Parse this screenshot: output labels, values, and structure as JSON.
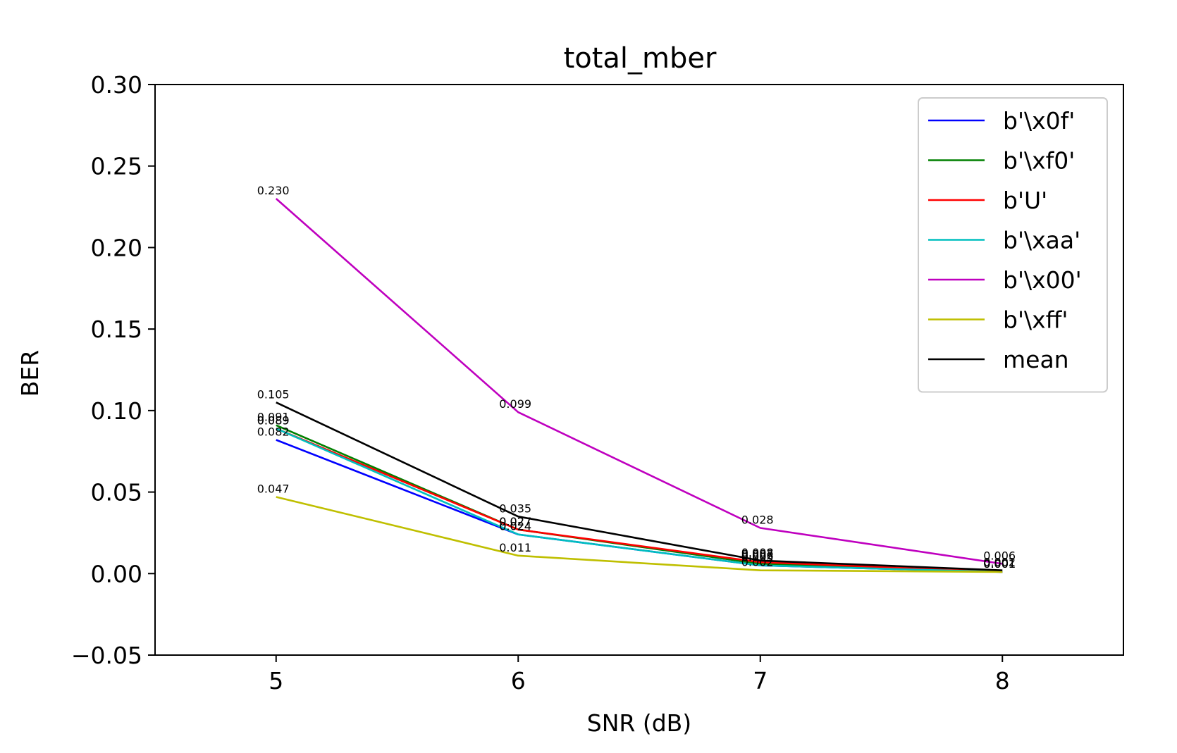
{
  "chart_data": {
    "type": "line",
    "title": "total_mber",
    "xlabel": "SNR (dB)",
    "ylabel": "BER",
    "x": [
      5,
      6,
      7,
      8
    ],
    "xlim": [
      4.5,
      8.5
    ],
    "ylim": [
      -0.05,
      0.3
    ],
    "xticks": [
      "5",
      "6",
      "7",
      "8"
    ],
    "yticks": [
      "−0.05",
      "0.00",
      "0.05",
      "0.10",
      "0.15",
      "0.20",
      "0.25",
      "0.30"
    ],
    "ytick_values": [
      -0.05,
      0.0,
      0.05,
      0.1,
      0.15,
      0.2,
      0.25,
      0.3
    ],
    "grid": false,
    "legend_position": "top-right",
    "series": [
      {
        "name": "b'\\x0f'",
        "color": "#0000ff",
        "values": [
          0.082,
          0.024,
          0.005,
          0.001
        ],
        "labels": [
          "0.082",
          "0.024",
          "0.005",
          "0.001"
        ]
      },
      {
        "name": "b'\\xf0'",
        "color": "#008000",
        "values": [
          0.091,
          0.027,
          0.006,
          0.001
        ],
        "labels": [
          "0.091",
          "0.027",
          "0.006",
          "0.001"
        ]
      },
      {
        "name": "b'U'",
        "color": "#ff0000",
        "values": [
          0.089,
          0.027,
          0.007,
          0.001
        ],
        "labels": [
          "0.089",
          "0.027",
          "0.007",
          "0.001"
        ]
      },
      {
        "name": "b'\\xaa'",
        "color": "#00bfbf",
        "values": [
          0.089,
          0.024,
          0.005,
          0.001
        ],
        "labels": [
          "0.089",
          "0.024",
          "0.005",
          "0.001"
        ]
      },
      {
        "name": "b'\\x00'",
        "color": "#bf00bf",
        "values": [
          0.23,
          0.099,
          0.028,
          0.006
        ],
        "labels": [
          "0.230",
          "0.099",
          "0.028",
          "0.006"
        ]
      },
      {
        "name": "b'\\xff'",
        "color": "#bfbf00",
        "values": [
          0.047,
          0.011,
          0.002,
          0.001
        ],
        "labels": [
          "0.047",
          "0.011",
          "0.002",
          "0.001"
        ]
      },
      {
        "name": "mean",
        "color": "#000000",
        "values": [
          0.105,
          0.035,
          0.008,
          0.002
        ],
        "labels": [
          "0.105",
          "0.035",
          "0.008",
          "0.002"
        ]
      }
    ]
  }
}
